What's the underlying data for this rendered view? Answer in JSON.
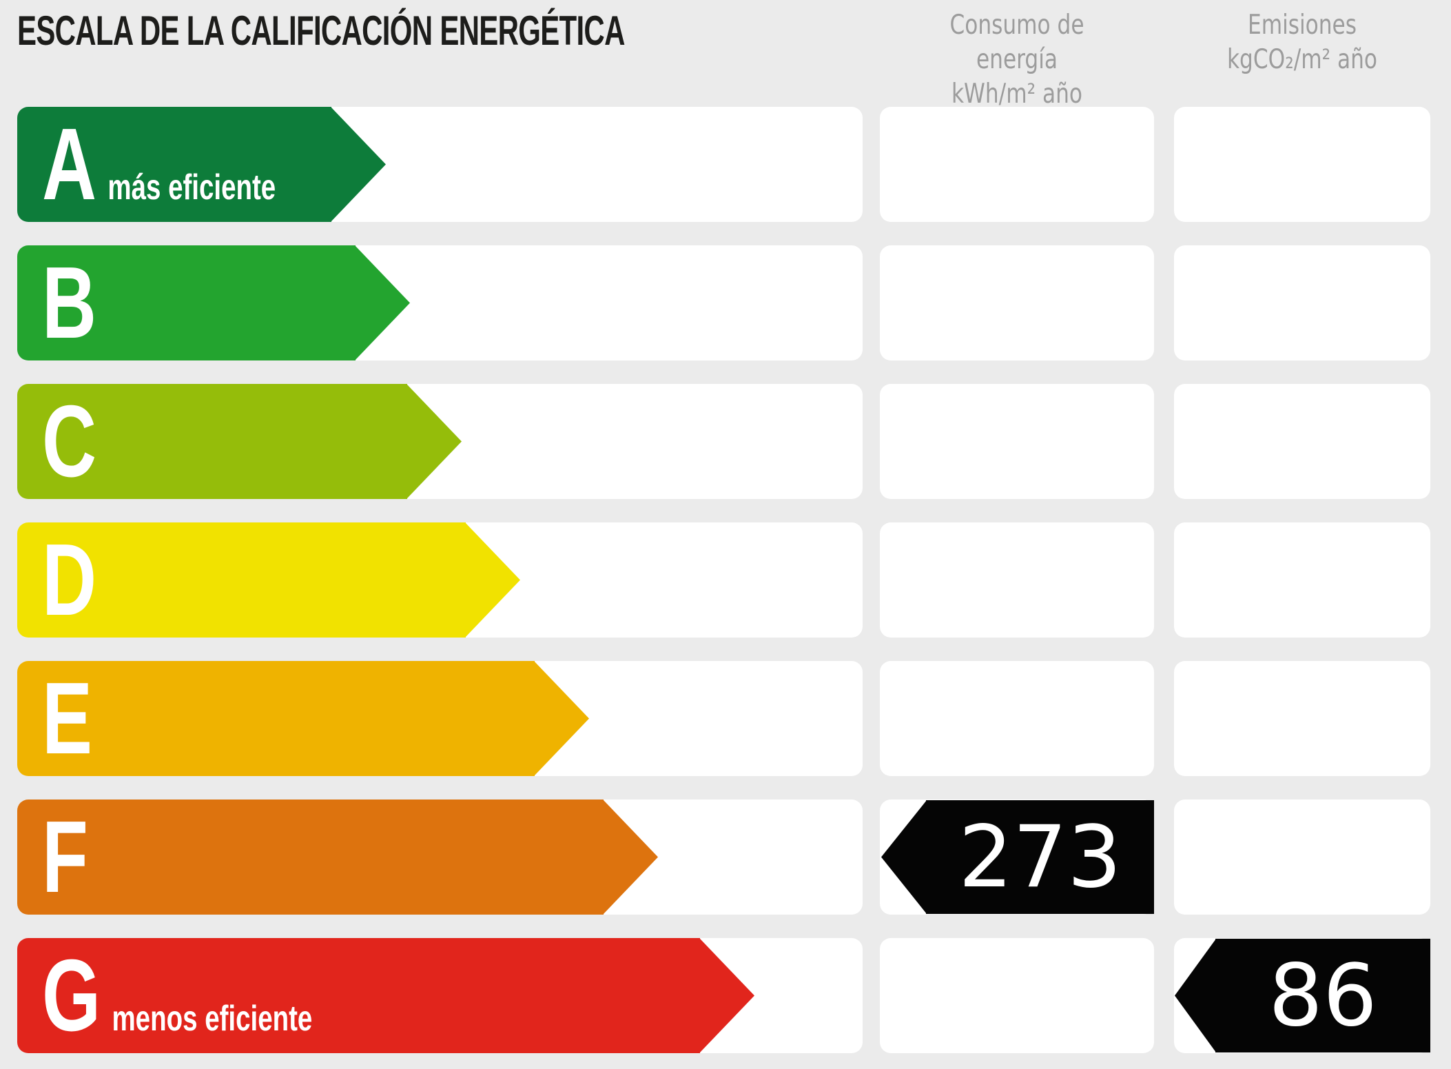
{
  "title": "ESCALA DE LA CALIFICACIÓN ENERGÉTICA",
  "columns": {
    "consumption": {
      "line1": "Consumo de energía",
      "line2": "kWh/m² año"
    },
    "emissions": {
      "line1": "Emisiones",
      "line2": "kgCO₂/m² año"
    }
  },
  "colors": {
    "background": "#ebebeb",
    "cell": "#ffffff",
    "marker": "#050505",
    "marker_text": "#ffffff",
    "title_text": "#1d1d1b",
    "header_text": "#9c9c9c"
  },
  "chart_data": {
    "type": "bar",
    "title": "ESCALA DE LA CALIFICACIÓN ENERGÉTICA",
    "columns": [
      "Consumo de energía kWh/m² año",
      "Emisiones kgCO₂/m² año"
    ],
    "ratings": [
      {
        "letter": "A",
        "label": "más eficiente",
        "color": "#0d7c3a",
        "bar_len": 535
      },
      {
        "letter": "B",
        "label": "",
        "color": "#23a42f",
        "bar_len": 570
      },
      {
        "letter": "C",
        "label": "",
        "color": "#95bd0a",
        "bar_len": 645
      },
      {
        "letter": "D",
        "label": "",
        "color": "#f1e200",
        "bar_len": 730
      },
      {
        "letter": "E",
        "label": "",
        "color": "#efb300",
        "bar_len": 830
      },
      {
        "letter": "F",
        "label": "",
        "color": "#dd730e",
        "bar_len": 930
      },
      {
        "letter": "G",
        "label": "menos eficiente",
        "color": "#e1251c",
        "bar_len": 1070
      }
    ],
    "indicators": [
      {
        "column": "consumption",
        "rating": "F",
        "value": "273",
        "unit": "kWh/m² año"
      },
      {
        "column": "emissions",
        "rating": "G",
        "value": "86",
        "unit": "kgCO₂/m² año"
      }
    ]
  }
}
